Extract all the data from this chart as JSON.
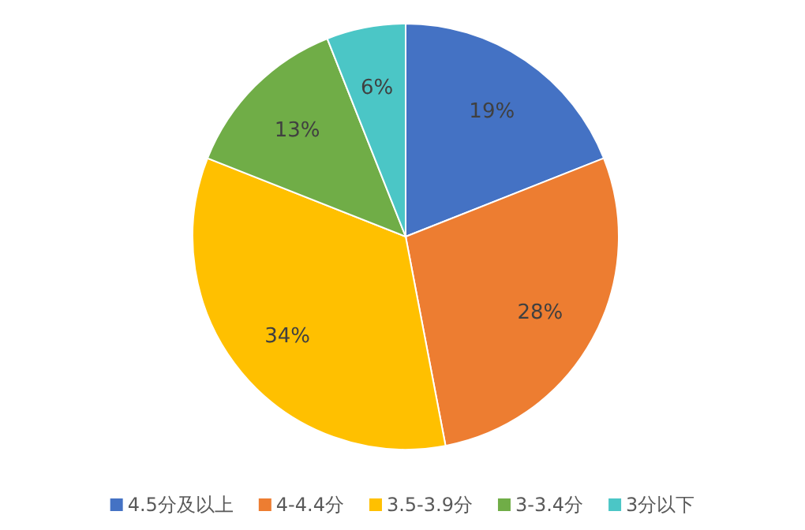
{
  "chart_data": {
    "type": "pie",
    "categories": [
      "4.5分及以上",
      "4-4.4分",
      "3.5-3.9分",
      "3-3.4分",
      "3分以下"
    ],
    "values": [
      19,
      28,
      34,
      13,
      6
    ],
    "colors": [
      "#4472c4",
      "#ed7d31",
      "#ffc000",
      "#70ad47",
      "#4bc6c6"
    ],
    "value_labels": [
      "19%",
      "28%",
      "34%",
      "13%",
      "6%"
    ],
    "legend": "bottom"
  }
}
